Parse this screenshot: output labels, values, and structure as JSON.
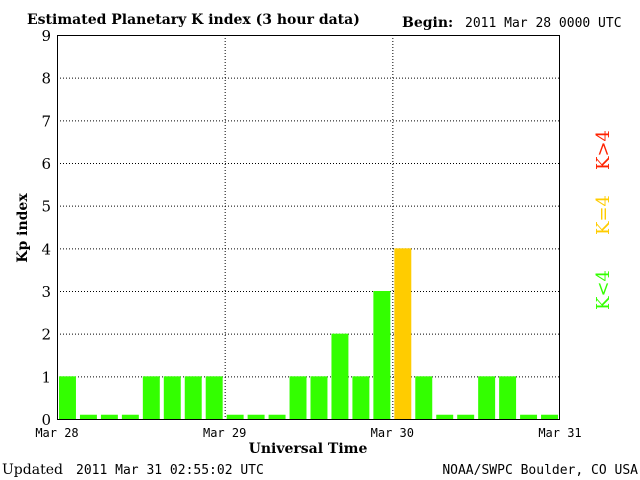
{
  "title": "Estimated Planetary K index (3 hour data)",
  "begin_label": "Begin:",
  "begin_value": "2011 Mar 28 0000 UTC",
  "updated_label": "Updated",
  "updated_value": "2011 Mar 31 02:55:02 UTC",
  "source": "NOAA/SWPC Boulder, CO USA",
  "legend": {
    "low": "K<4",
    "mid": "K=4",
    "high": "K>4"
  },
  "colors": {
    "low": "#33ff00",
    "mid": "#ffcc00",
    "high": "#ff2200",
    "grid": "#000000",
    "background": "#ffffff"
  },
  "chart_data": {
    "type": "bar",
    "title": "Estimated Planetary K index (3 hour data)",
    "xlabel": "Universal Time",
    "ylabel": "Kp index",
    "ylim": [
      0,
      9
    ],
    "yticks": [
      "0",
      "1",
      "2",
      "3",
      "4",
      "5",
      "6",
      "7",
      "8",
      "9"
    ],
    "xticks": [
      "Mar 28",
      "Mar 29",
      "Mar 30",
      "Mar 31"
    ],
    "grid": true,
    "interval_hours": 3,
    "values": [
      1,
      0,
      0,
      0,
      1,
      1,
      1,
      1,
      0,
      0,
      0,
      1,
      1,
      2,
      1,
      3,
      4,
      1,
      0,
      0,
      1,
      1,
      0,
      0
    ]
  }
}
